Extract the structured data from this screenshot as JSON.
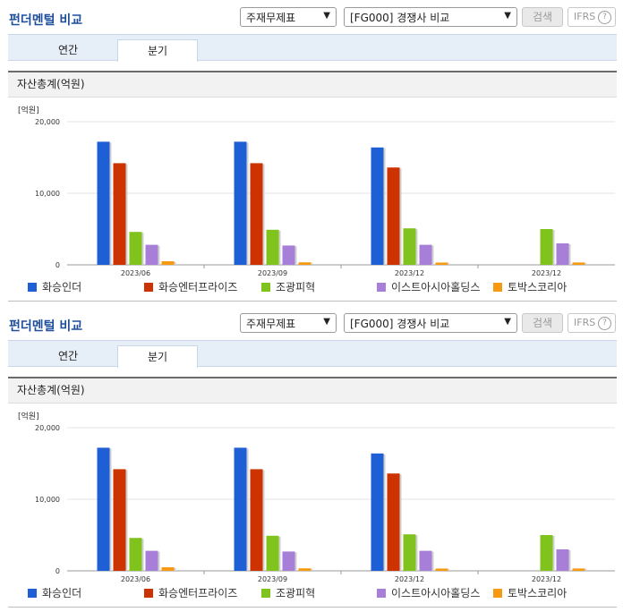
{
  "panels": [
    {
      "title": "펀더멘털 비교",
      "select1": "주재무제표",
      "select2": "[FG000] 경쟁사 비교",
      "search_label": "검색",
      "ifrs_label": "IFRS",
      "help_icon": "question-circle-icon",
      "tabs": [
        "연간",
        "분기"
      ],
      "active_tab": "분기",
      "section_title": "자산총계(억원)"
    },
    {
      "title": "펀더멘털 비교",
      "select1": "주재무제표",
      "select2": "[FG000] 경쟁사 비교",
      "search_label": "검색",
      "ifrs_label": "IFRS",
      "help_icon": "question-circle-icon",
      "tabs": [
        "연간",
        "분기"
      ],
      "active_tab": "분기",
      "section_title": "자산총계(억원)"
    }
  ],
  "chart_data": [
    {
      "type": "bar",
      "unit_label": "[억원]",
      "categories": [
        "2023/06",
        "2023/09",
        "2023/12",
        "2023/12"
      ],
      "ylim": [
        0,
        20000
      ],
      "yticks": [
        "0",
        "10,000",
        "20,000"
      ],
      "grid": true,
      "legend_position": "bottom",
      "series": [
        {
          "name": "화승인더",
          "color": "#1f5fd6",
          "values": [
            17200,
            17200,
            16400,
            null
          ]
        },
        {
          "name": "화승엔터프라이즈",
          "color": "#cc3300",
          "values": [
            14200,
            14200,
            13600,
            null
          ]
        },
        {
          "name": "조광피혁",
          "color": "#80c31c",
          "values": [
            4600,
            4900,
            5100,
            5000
          ]
        },
        {
          "name": "이스트아시아홀딩스",
          "color": "#a77fd9",
          "values": [
            2800,
            2700,
            2800,
            3000
          ]
        },
        {
          "name": "토박스코리아",
          "color": "#f59a12",
          "values": [
            500,
            350,
            320,
            330
          ]
        }
      ]
    },
    {
      "type": "bar",
      "unit_label": "[억원]",
      "categories": [
        "2023/06",
        "2023/09",
        "2023/12",
        "2023/12"
      ],
      "ylim": [
        0,
        20000
      ],
      "yticks": [
        "0",
        "10,000",
        "20,000"
      ],
      "grid": true,
      "legend_position": "bottom",
      "series": [
        {
          "name": "화승인더",
          "color": "#1f5fd6",
          "values": [
            17200,
            17200,
            16400,
            null
          ]
        },
        {
          "name": "화승엔터프라이즈",
          "color": "#cc3300",
          "values": [
            14200,
            14200,
            13600,
            null
          ]
        },
        {
          "name": "조광피혁",
          "color": "#80c31c",
          "values": [
            4600,
            4900,
            5100,
            5000
          ]
        },
        {
          "name": "이스트아시아홀딩스",
          "color": "#a77fd9",
          "values": [
            2800,
            2700,
            2800,
            3000
          ]
        },
        {
          "name": "토박스코리아",
          "color": "#f59a12",
          "values": [
            500,
            350,
            320,
            330
          ]
        }
      ]
    }
  ]
}
